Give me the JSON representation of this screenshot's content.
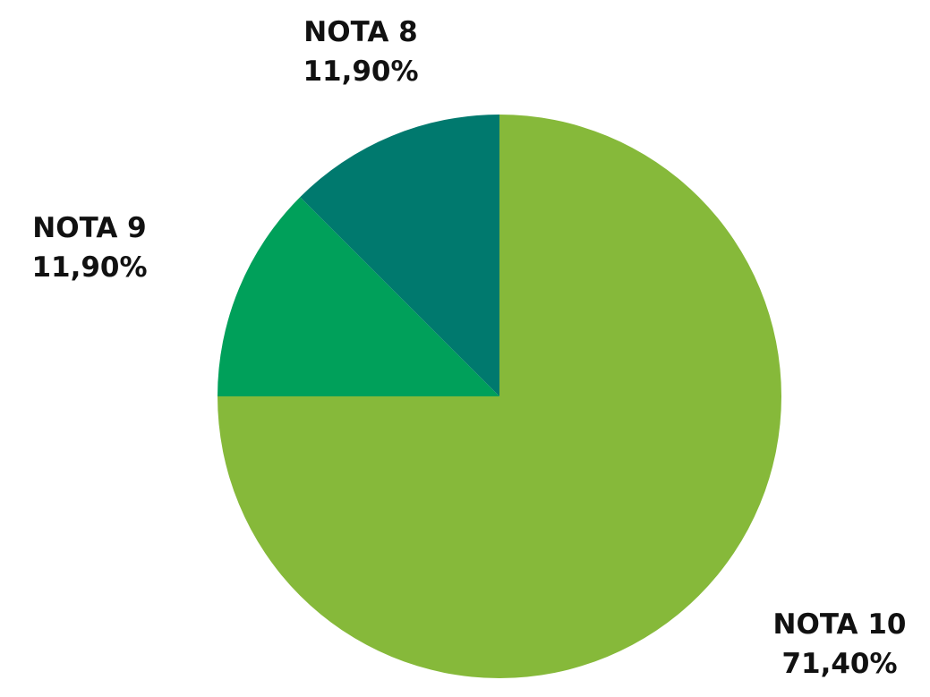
{
  "chart_data": {
    "type": "pie",
    "title": "",
    "slices": [
      {
        "label": "NOTA 10",
        "value": 71.4,
        "value_label": "71,40%",
        "color": "#86b93a"
      },
      {
        "label": "NOTA 9",
        "value": 11.9,
        "value_label": "11,90%",
        "color": "#00a05a"
      },
      {
        "label": "NOTA 8",
        "value": 11.9,
        "value_label": "11,90%",
        "color": "#00796e"
      }
    ],
    "start_angle": "12 o'clock",
    "direction": "clockwise",
    "legend": "none"
  }
}
